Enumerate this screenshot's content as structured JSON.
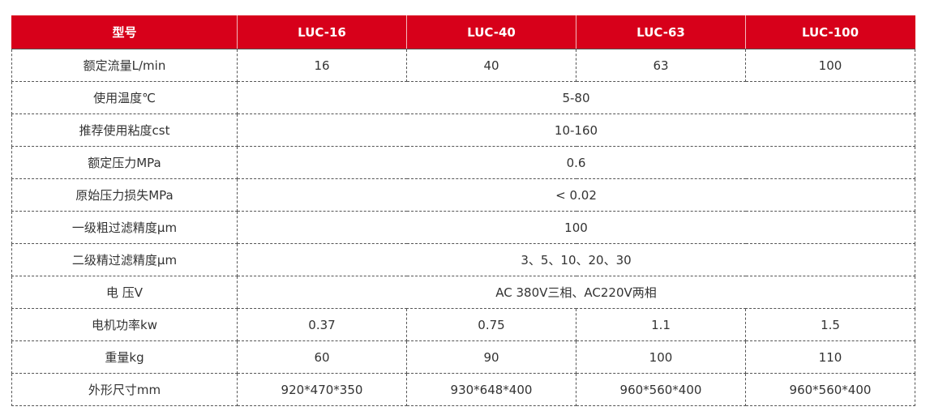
{
  "table": {
    "header": [
      "型号",
      "LUC-16",
      "LUC-40",
      "LUC-63",
      "LUC-100"
    ],
    "rows": [
      {
        "label": "额定流量L/min",
        "values": [
          "16",
          "40",
          "63",
          "100"
        ]
      },
      {
        "label": "使用温度℃",
        "merged": "5-80"
      },
      {
        "label": "推荐使用粘度cst",
        "merged": "10-160"
      },
      {
        "label": "额定压力MPa",
        "merged": "0.6"
      },
      {
        "label": "原始压力损失MPa",
        "merged": "< 0.02"
      },
      {
        "label": "一级粗过滤精度μm",
        "merged": "100"
      },
      {
        "label": "二级精过滤精度μm",
        "merged": "3、5、10、20、30"
      },
      {
        "label": "电 压V",
        "merged": "AC 380V三相、AC220V两相"
      },
      {
        "label": "电机功率kw",
        "values": [
          "0.37",
          "0.75",
          "1.1",
          "1.5"
        ]
      },
      {
        "label": "重量kg",
        "values": [
          "60",
          "90",
          "100",
          "110"
        ]
      },
      {
        "label": "外形尺寸mm",
        "values": [
          "920*470*350",
          "930*648*400",
          "960*560*400",
          "960*560*400"
        ]
      }
    ]
  },
  "colors": {
    "header_background": "#d7001a",
    "header_text": "#ffffff",
    "body_text": "#333333",
    "grid_line": "#555555"
  }
}
